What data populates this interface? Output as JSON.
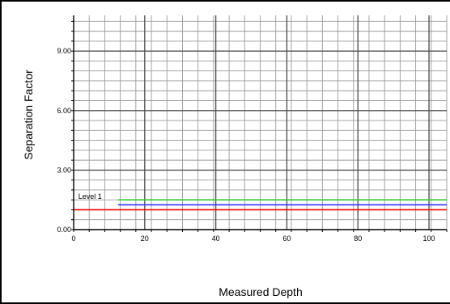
{
  "chart_data": {
    "type": "line",
    "title": "",
    "xlabel": "Measured Depth",
    "ylabel": "Separation Factor",
    "xlim": [
      0,
      105
    ],
    "ylim": [
      0,
      10.8
    ],
    "x_ticks": [
      0,
      20,
      40,
      60,
      80,
      100
    ],
    "x_tick_labels": [
      "0",
      "20",
      "40",
      "60",
      "80",
      "100"
    ],
    "y_ticks": [
      0,
      3,
      6,
      9
    ],
    "y_tick_labels": [
      "0.00",
      "3.00",
      "6.00",
      "9.00"
    ],
    "grid": true,
    "series": [
      {
        "color": "#33cc33",
        "x": [
          12.5,
          105
        ],
        "y": [
          1.5,
          1.5
        ]
      },
      {
        "color": "#3333ff",
        "x": [
          12.5,
          105
        ],
        "y": [
          1.25,
          1.25
        ]
      },
      {
        "color": "#ff0000",
        "x": [
          0,
          105
        ],
        "y": [
          1.0,
          1.0
        ]
      }
    ],
    "annotations": [
      {
        "text": "Level 1",
        "x": 1.3,
        "y": 1.55
      }
    ]
  }
}
